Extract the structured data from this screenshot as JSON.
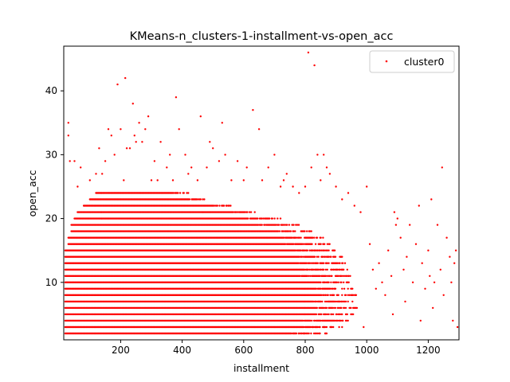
{
  "chart_data": {
    "type": "scatter",
    "title": "KMeans-n_clusters-1-installment-vs-open_acc",
    "xlabel": "installment",
    "ylabel": "open_acc",
    "xlim": [
      15,
      1300
    ],
    "ylim": [
      1,
      47
    ],
    "xticks": [
      200,
      400,
      600,
      800,
      1000,
      1200
    ],
    "yticks": [
      10,
      20,
      30,
      40
    ],
    "grid": false,
    "legend": "top-right",
    "series": [
      {
        "name": "cluster0",
        "color": "#ff0000",
        "dense_bands": [
          {
            "y": 2,
            "x": [
              20,
              880
            ]
          },
          {
            "y": 3,
            "x": [
              20,
              920
            ]
          },
          {
            "y": 4,
            "x": [
              20,
              950
            ]
          },
          {
            "y": 5,
            "x": [
              20,
              960
            ]
          },
          {
            "y": 6,
            "x": [
              20,
              970
            ]
          },
          {
            "y": 7,
            "x": [
              20,
              970
            ]
          },
          {
            "y": 8,
            "x": [
              20,
              970
            ]
          },
          {
            "y": 9,
            "x": [
              20,
              960
            ]
          },
          {
            "y": 10,
            "x": [
              20,
              960
            ]
          },
          {
            "y": 11,
            "x": [
              20,
              950
            ]
          },
          {
            "y": 12,
            "x": [
              20,
              940
            ]
          },
          {
            "y": 13,
            "x": [
              20,
              930
            ]
          },
          {
            "y": 14,
            "x": [
              20,
              920
            ]
          },
          {
            "y": 15,
            "x": [
              20,
              900
            ]
          },
          {
            "y": 16,
            "x": [
              30,
              880
            ]
          },
          {
            "y": 17,
            "x": [
              30,
              860
            ]
          },
          {
            "y": 18,
            "x": [
              40,
              820
            ]
          },
          {
            "y": 19,
            "x": [
              40,
              780
            ]
          },
          {
            "y": 20,
            "x": [
              50,
              720
            ]
          },
          {
            "y": 21,
            "x": [
              60,
              640
            ]
          },
          {
            "y": 22,
            "x": [
              80,
              560
            ]
          },
          {
            "y": 23,
            "x": [
              100,
              480
            ]
          },
          {
            "y": 24,
            "x": [
              120,
              420
            ]
          }
        ],
        "points": [
          [
            30,
            35
          ],
          [
            30,
            33
          ],
          [
            35,
            29
          ],
          [
            50,
            29
          ],
          [
            60,
            25
          ],
          [
            70,
            28
          ],
          [
            100,
            26
          ],
          [
            120,
            27
          ],
          [
            130,
            31
          ],
          [
            140,
            27
          ],
          [
            150,
            29
          ],
          [
            160,
            34
          ],
          [
            170,
            33
          ],
          [
            180,
            30
          ],
          [
            190,
            41
          ],
          [
            200,
            34
          ],
          [
            210,
            26
          ],
          [
            215,
            42
          ],
          [
            220,
            31
          ],
          [
            230,
            31
          ],
          [
            240,
            38
          ],
          [
            245,
            33
          ],
          [
            250,
            32
          ],
          [
            260,
            35
          ],
          [
            270,
            32
          ],
          [
            280,
            34
          ],
          [
            290,
            36
          ],
          [
            300,
            26
          ],
          [
            310,
            29
          ],
          [
            320,
            26
          ],
          [
            330,
            32
          ],
          [
            350,
            28
          ],
          [
            360,
            30
          ],
          [
            370,
            26
          ],
          [
            380,
            39
          ],
          [
            390,
            34
          ],
          [
            410,
            30
          ],
          [
            420,
            27
          ],
          [
            430,
            28
          ],
          [
            450,
            26
          ],
          [
            460,
            36
          ],
          [
            480,
            28
          ],
          [
            490,
            32
          ],
          [
            500,
            31
          ],
          [
            520,
            29
          ],
          [
            530,
            35
          ],
          [
            540,
            30
          ],
          [
            560,
            26
          ],
          [
            580,
            29
          ],
          [
            600,
            26
          ],
          [
            610,
            28
          ],
          [
            630,
            37
          ],
          [
            650,
            34
          ],
          [
            660,
            26
          ],
          [
            680,
            28
          ],
          [
            700,
            30
          ],
          [
            720,
            25
          ],
          [
            730,
            26
          ],
          [
            740,
            27
          ],
          [
            760,
            25
          ],
          [
            780,
            24
          ],
          [
            800,
            25
          ],
          [
            810,
            46
          ],
          [
            820,
            28
          ],
          [
            830,
            44
          ],
          [
            840,
            30
          ],
          [
            850,
            26
          ],
          [
            860,
            30
          ],
          [
            870,
            28
          ],
          [
            880,
            27
          ],
          [
            900,
            25
          ],
          [
            920,
            23
          ],
          [
            940,
            24
          ],
          [
            960,
            22
          ],
          [
            980,
            21
          ],
          [
            990,
            3
          ],
          [
            1000,
            25
          ],
          [
            1010,
            16
          ],
          [
            1020,
            12
          ],
          [
            1030,
            9
          ],
          [
            1040,
            13
          ],
          [
            1050,
            10
          ],
          [
            1060,
            8
          ],
          [
            1070,
            15
          ],
          [
            1080,
            11
          ],
          [
            1085,
            5
          ],
          [
            1090,
            21
          ],
          [
            1095,
            19
          ],
          [
            1100,
            20
          ],
          [
            1110,
            17
          ],
          [
            1120,
            12
          ],
          [
            1125,
            7
          ],
          [
            1130,
            14
          ],
          [
            1140,
            19
          ],
          [
            1150,
            10
          ],
          [
            1160,
            16
          ],
          [
            1170,
            22
          ],
          [
            1175,
            4
          ],
          [
            1180,
            13
          ],
          [
            1190,
            9
          ],
          [
            1200,
            15
          ],
          [
            1205,
            11
          ],
          [
            1210,
            23
          ],
          [
            1215,
            6
          ],
          [
            1220,
            10
          ],
          [
            1230,
            19
          ],
          [
            1240,
            12
          ],
          [
            1245,
            28
          ],
          [
            1250,
            8
          ],
          [
            1260,
            17
          ],
          [
            1270,
            14
          ],
          [
            1275,
            10
          ],
          [
            1280,
            4
          ],
          [
            1285,
            13
          ],
          [
            1290,
            15
          ],
          [
            1295,
            3
          ]
        ]
      }
    ]
  }
}
